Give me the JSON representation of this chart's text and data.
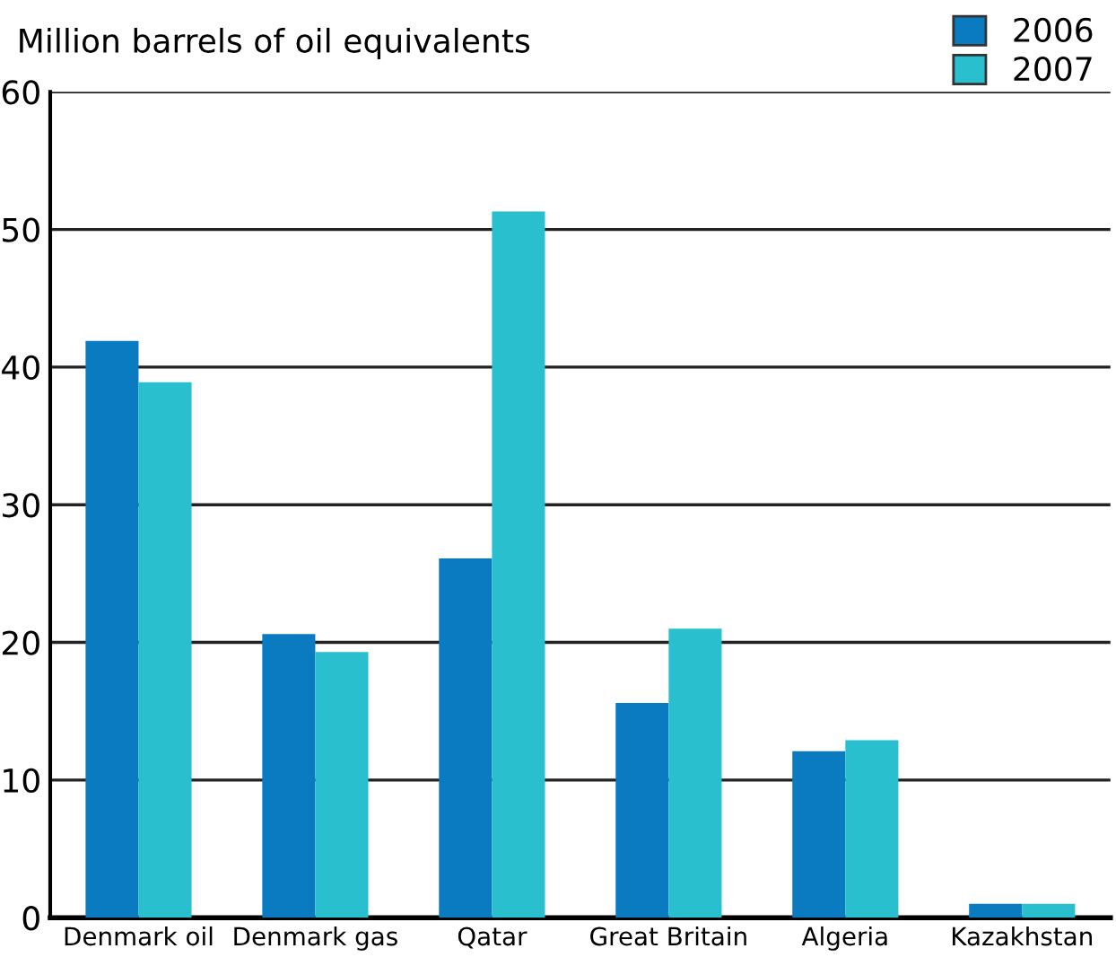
{
  "chart_data": {
    "type": "bar",
    "ylabel": "Million barrels of oil equivalents",
    "categories": [
      "Denmark oil",
      "Denmark gas",
      "Qatar",
      "Great Britain",
      "Algeria",
      "Kazakhstan"
    ],
    "series": [
      {
        "name": "2006",
        "color": "#0a7bc0",
        "values": [
          41.9,
          20.6,
          26.1,
          15.6,
          12.1,
          1.0
        ]
      },
      {
        "name": "2007",
        "color": "#29bfcf",
        "values": [
          38.9,
          19.3,
          51.3,
          21.0,
          12.9,
          1.0
        ]
      }
    ],
    "ylim": [
      0,
      60
    ],
    "yticks": [
      0,
      10,
      20,
      30,
      40,
      50,
      60
    ],
    "grid": "y",
    "legend": "top right"
  }
}
